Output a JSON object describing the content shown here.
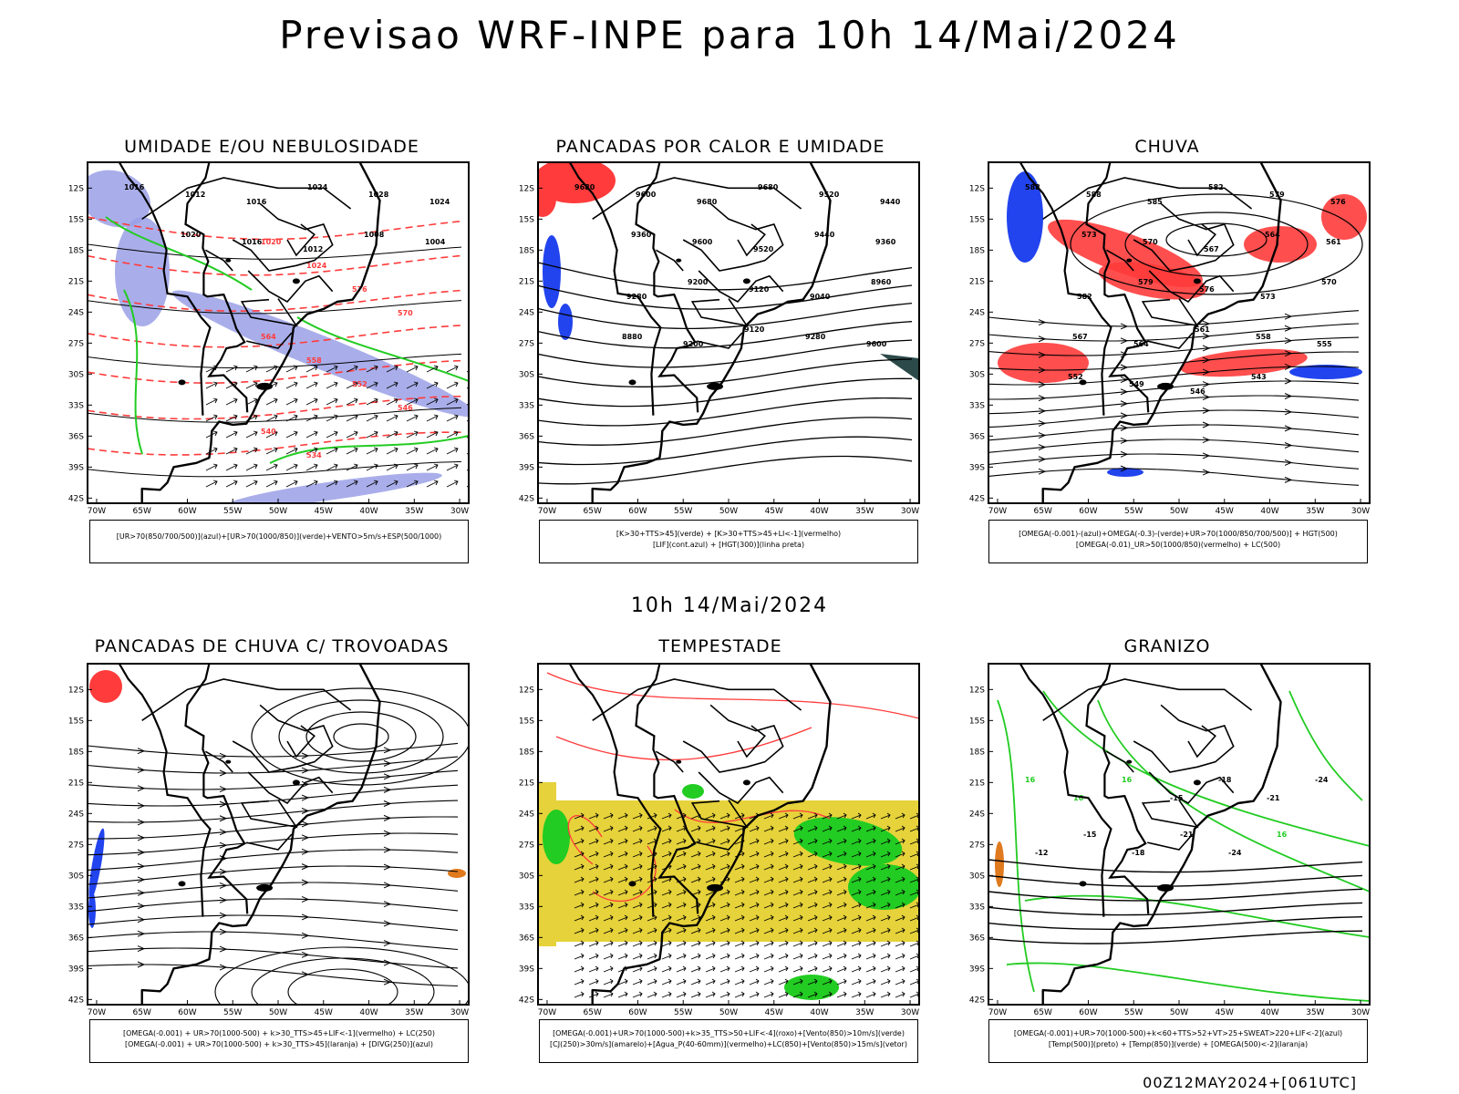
{
  "title": "Previsao WRF-INPE  para 10h 14/Mai/2024",
  "middle_label": "10h 14/Mai/2024",
  "footer": "00Z12MAY2024+[061UTC]",
  "lat_ticks": [
    "12S",
    "15S",
    "18S",
    "21S",
    "24S",
    "27S",
    "30S",
    "33S",
    "36S",
    "39S",
    "42S"
  ],
  "lon_ticks": [
    "70W",
    "65W",
    "60W",
    "55W",
    "50W",
    "45W",
    "40W",
    "35W",
    "30W"
  ],
  "panels": [
    {
      "title": "UMIDADE E/OU NEBULOSIDADE",
      "legend": [
        "[UR>70(850/700/500)](azul)+[UR>70(1000/850)](verde)+VENTO>5m/s+ESP(500/1000)"
      ],
      "labels": [
        "1016",
        "1012",
        "1016",
        "1024",
        "1028",
        "1024",
        "1020",
        "1016",
        "1012",
        "1008",
        "1004",
        "1020",
        "1024",
        "576",
        "570",
        "564",
        "558",
        "552",
        "546",
        "540",
        "534"
      ]
    },
    {
      "title": "PANCADAS POR CALOR E UMIDADE",
      "legend": [
        "[K>30+TTS>45](verde) + [K>30+TTS>45+LI<-1](vermelho)",
        "[LIF](cont.azul) + [HGT(300)](linha preta)"
      ],
      "labels": [
        "9680",
        "9600",
        "9680",
        "9680",
        "9520",
        "9440",
        "9360",
        "9600",
        "9520",
        "9440",
        "9360",
        "9280",
        "9200",
        "9120",
        "9040",
        "8960",
        "8880",
        "9200",
        "9120",
        "9280",
        "9600"
      ]
    },
    {
      "title": "CHUVA",
      "legend": [
        "[OMEGA(-0.001)-(azul)+OMEGA(-0.3)-(verde)+UR>70(1000/850/700/500)] + HGT(500)",
        "[OMEGA(-0.01)_UR>50(1000/850)(vermelho) + LC(500)"
      ],
      "labels": [
        "588",
        "588",
        "585",
        "582",
        "579",
        "576",
        "573",
        "570",
        "567",
        "564",
        "561",
        "582",
        "579",
        "576",
        "573",
        "570",
        "567",
        "564",
        "561",
        "558",
        "555",
        "552",
        "549",
        "546",
        "543"
      ]
    },
    {
      "title": "PANCADAS DE CHUVA C/ TROVOADAS",
      "legend": [
        "[OMEGA(-0.001) + UR>70(1000-500) + k>30_TTS>45+LIF<-1](vermelho) + LC(250)",
        "[OMEGA(-0.001) + UR>70(1000-500) + k>30_TTS>45](laranja) + [DIVG(250)](azul)"
      ],
      "labels": []
    },
    {
      "title": "TEMPESTADE",
      "legend": [
        "[OMEGA(-0.001)+UR>70(1000-500)+k>35_TTS>50+LIF<-4](roxo)+[Vento(850)>10m/s](verde)",
        "[CJ(250)>30m/s](amarelo)+[Agua_P(40-60mm)](vermelho)+LC(850)+[Vento(850)>15m/s](vetor)"
      ],
      "labels": []
    },
    {
      "title": "GRANIZO",
      "legend": [
        "[OMEGA(-0.001)+UR>70(1000-500)+k<60+TTS>52+VT>25+SWEAT>220+LIF<-2](azul)",
        "[Temp(500)](preto) + [Temp(850)](verde) + [OMEGA(500)<-2](laranja)"
      ],
      "labels": [
        "16",
        "16",
        "16",
        "-15",
        "-18",
        "-21",
        "-24",
        "-12",
        "-15",
        "-18",
        "-21",
        "-24",
        "16"
      ]
    }
  ],
  "colors": {
    "blue_fill": "#9aa0e6",
    "green": "#22cc22",
    "red": "#ff3b3b",
    "blue": "#2244ee",
    "yellow": "#e6d23a",
    "orange": "#e07a1e",
    "dark": "#2c4a4a"
  }
}
